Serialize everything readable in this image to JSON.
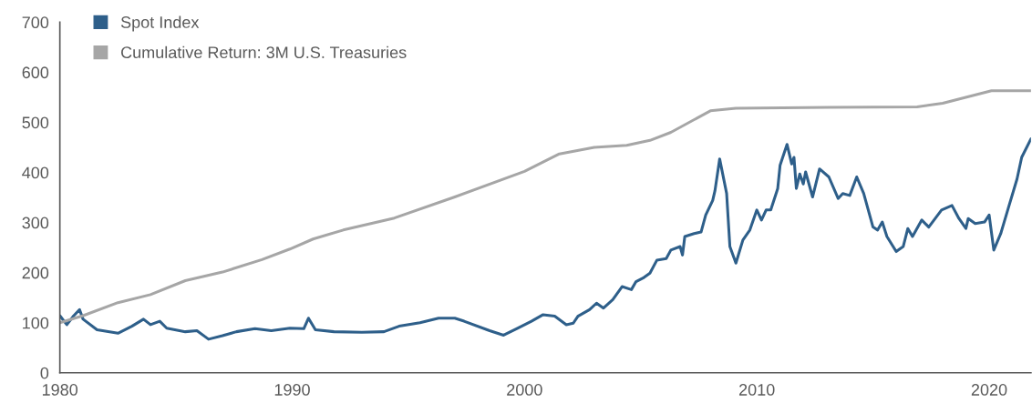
{
  "chart_data": {
    "type": "line",
    "xlim": [
      1980,
      2021.8
    ],
    "xticks": [
      1980,
      1990,
      2000,
      2010,
      2020
    ],
    "ylim": [
      0,
      700
    ],
    "yticks": [
      0,
      100,
      200,
      300,
      400,
      500,
      600,
      700
    ],
    "grid": false,
    "legend": "top left",
    "marker": "none",
    "line_style": "solid",
    "series": [
      {
        "name": "Spot Index",
        "color": "#2e5f8a",
        "x": [
          1980.0,
          1980.3,
          1980.6,
          1980.85,
          1981.0,
          1981.6,
          1982.5,
          1983.1,
          1983.6,
          1983.9,
          1984.3,
          1984.6,
          1985.4,
          1985.9,
          1986.4,
          1987.0,
          1987.6,
          1988.4,
          1989.1,
          1989.9,
          1990.5,
          1990.7,
          1991.0,
          1991.8,
          1993.0,
          1993.95,
          1994.6,
          1995.5,
          1996.3,
          1997.0,
          1997.4,
          1998.5,
          1999.1,
          1999.7,
          2000.3,
          2000.8,
          2001.3,
          2001.8,
          2002.1,
          2002.3,
          2002.8,
          2003.1,
          2003.4,
          2003.8,
          2004.2,
          2004.6,
          2004.8,
          2005.1,
          2005.4,
          2005.7,
          2006.1,
          2006.3,
          2006.7,
          2006.8,
          2006.9,
          2007.3,
          2007.6,
          2007.8,
          2008.1,
          2008.2,
          2008.4,
          2008.7,
          2008.84,
          2009.1,
          2009.4,
          2009.7,
          2010.0,
          2010.2,
          2010.4,
          2010.6,
          2010.9,
          2011.0,
          2011.3,
          2011.5,
          2011.6,
          2011.7,
          2011.85,
          2012.0,
          2012.1,
          2012.4,
          2012.7,
          2013.1,
          2013.5,
          2013.7,
          2014.0,
          2014.3,
          2014.6,
          2015.0,
          2015.2,
          2015.4,
          2015.6,
          2016.0,
          2016.3,
          2016.5,
          2016.7,
          2017.1,
          2017.4,
          2017.95,
          2018.4,
          2018.7,
          2019.0,
          2019.1,
          2019.4,
          2019.8,
          2020.0,
          2020.2,
          2020.5,
          2020.8,
          2021.2,
          2021.4,
          2021.8
        ],
        "values": [
          114,
          96,
          114,
          126,
          107,
          86,
          79,
          93,
          107,
          96,
          103,
          89,
          82,
          84,
          67,
          74,
          82,
          88,
          84,
          89,
          88,
          109,
          86,
          82,
          81,
          82,
          93,
          100,
          109,
          109,
          103,
          84,
          75,
          89,
          103,
          116,
          113,
          96,
          99,
          113,
          126,
          139,
          129,
          146,
          172,
          166,
          182,
          189,
          199,
          225,
          228,
          245,
          252,
          235,
          272,
          278,
          281,
          315,
          344,
          364,
          427,
          358,
          252,
          219,
          265,
          285,
          325,
          305,
          325,
          325,
          368,
          414,
          456,
          417,
          430,
          368,
          397,
          377,
          401,
          351,
          407,
          391,
          348,
          358,
          354,
          391,
          358,
          291,
          285,
          301,
          272,
          242,
          252,
          288,
          272,
          305,
          291,
          325,
          334,
          308,
          288,
          308,
          298,
          301,
          315,
          245,
          278,
          325,
          387,
          430,
          467
        ]
      },
      {
        "name": "Cumulative Return: 3M U.S. Treasuries",
        "color": "#a6a6a6",
        "x": [
          1980.0,
          1981.0,
          1982.5,
          1983.9,
          1985.4,
          1987.0,
          1988.7,
          1989.9,
          1990.9,
          1992.2,
          1994.4,
          1997.0,
          2000.0,
          2001.5,
          2003.0,
          2004.4,
          2005.4,
          2006.3,
          2008.0,
          2009.1,
          2013.1,
          2016.9,
          2018.0,
          2020.1,
          2021.8
        ],
        "values": [
          100,
          114,
          140,
          156,
          184,
          201,
          226,
          247,
          267,
          285,
          309,
          351,
          402,
          437,
          450,
          454,
          464,
          480,
          523,
          528,
          530,
          531,
          538,
          563,
          563
        ]
      }
    ]
  }
}
